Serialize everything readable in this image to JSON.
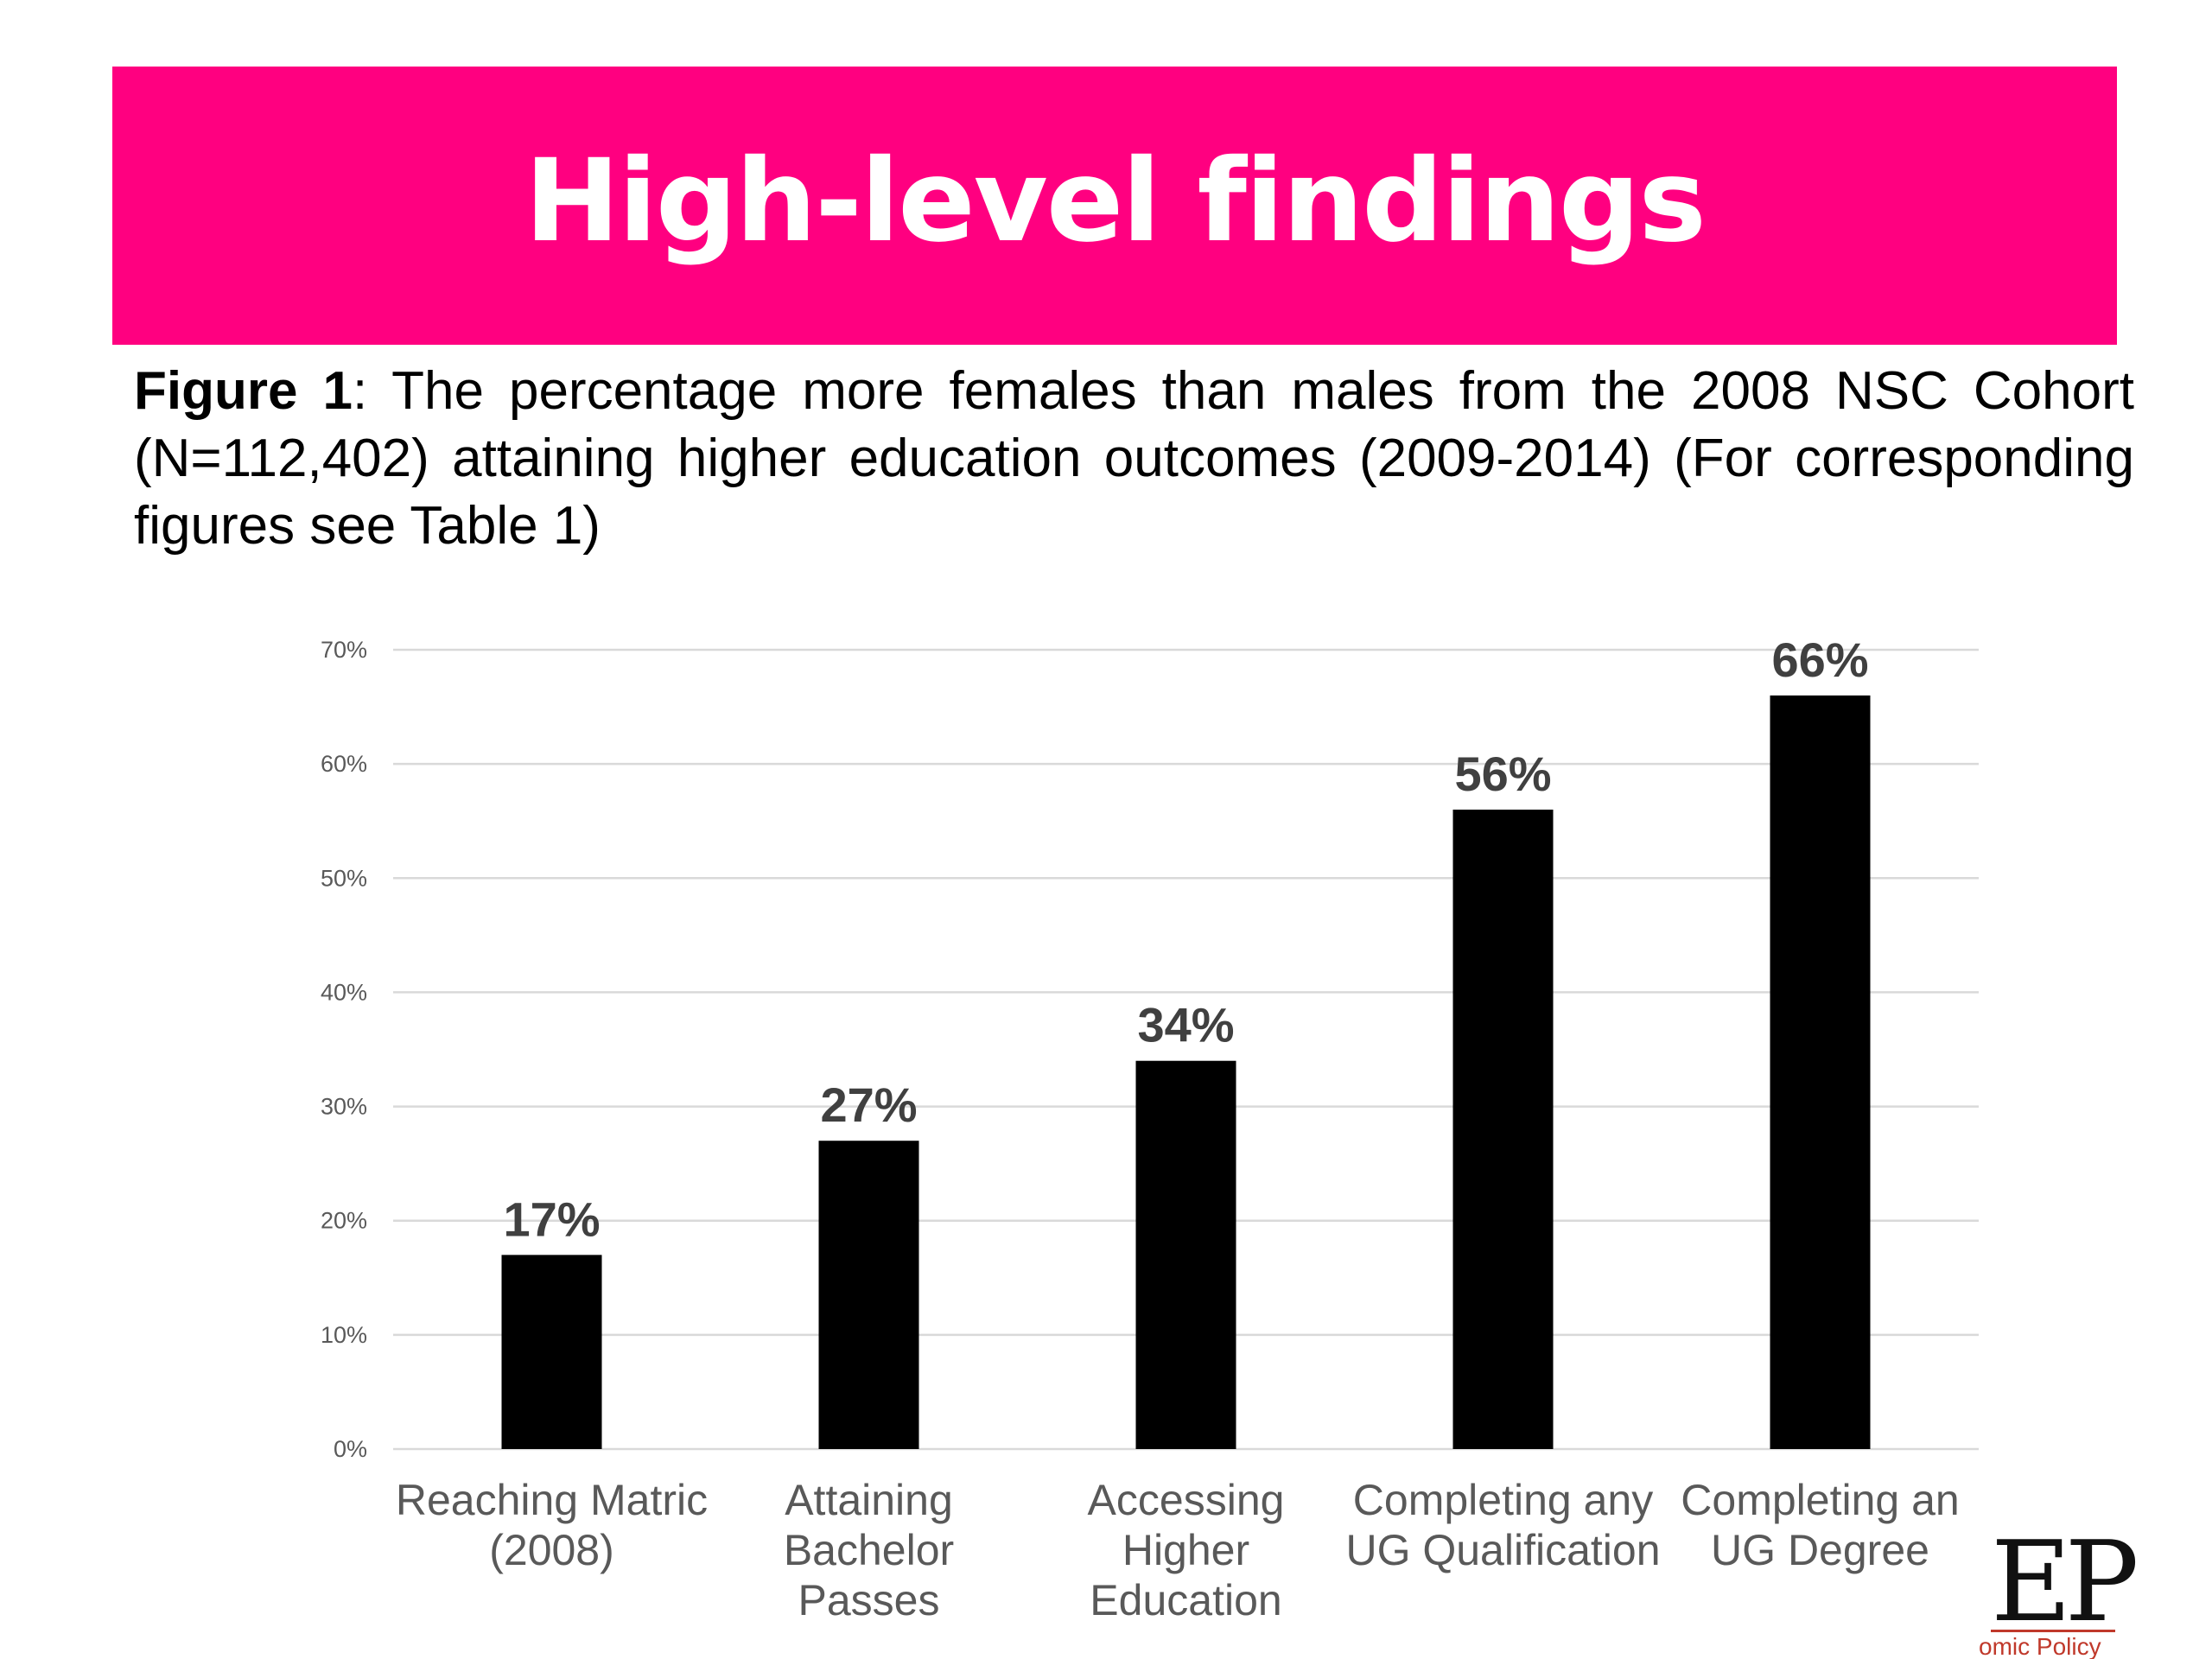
{
  "slide": {
    "title": "High-level findings",
    "caption_label": "Figure 1",
    "caption_text": ": The percentage more females than males from the 2008 NSC Cohort (N=112,402) attaining higher education outcomes (2009-2014) (For corresponding figures see Table 1)"
  },
  "colors": {
    "title_bar": "#FF0080",
    "bar": "#000000",
    "gridline": "#D9D9D9",
    "axis_text": "#595959",
    "data_label": "#404040",
    "logo_accent": "#C0392B"
  },
  "logo": {
    "mark": "EP",
    "subtitle": "omic Policy"
  },
  "chart_data": {
    "type": "bar",
    "categories": [
      [
        "Reaching Matric",
        "(2008)"
      ],
      [
        "Attaining",
        "Bachelor",
        "Passes"
      ],
      [
        "Accessing",
        "Higher",
        "Education"
      ],
      [
        "Completing any",
        "UG Qualification"
      ],
      [
        "Completing an",
        "UG Degree"
      ]
    ],
    "values": [
      17,
      27,
      34,
      56,
      66
    ],
    "data_labels": [
      "17%",
      "27%",
      "34%",
      "56%",
      "66%"
    ],
    "y_ticks": [
      "0%",
      "10%",
      "20%",
      "30%",
      "40%",
      "50%",
      "60%",
      "70%"
    ],
    "ylim": [
      0,
      70
    ],
    "grid": true,
    "legend": "none",
    "title": "",
    "xlabel": "",
    "ylabel": ""
  }
}
